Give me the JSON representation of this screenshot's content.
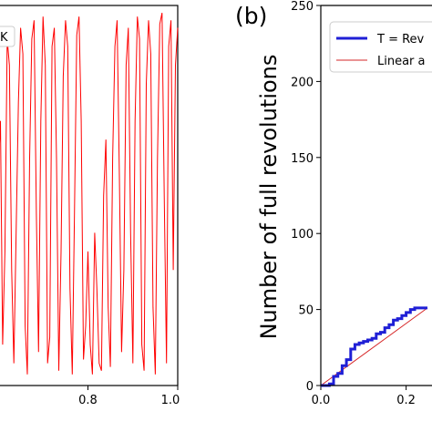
{
  "chart_data": [
    {
      "type": "line",
      "panel_label": "",
      "title": "",
      "xlabel": "",
      "ylabel": "",
      "xlim": [
        0.6,
        1.0
      ],
      "x_ticks": [
        "0.8",
        "1.0"
      ],
      "legend": {
        "placement": "top-left",
        "entries": [
          "K"
        ]
      },
      "series": [
        {
          "color": "#ff0000",
          "x": [
            0.6,
            0.605,
            0.61,
            0.615,
            0.62,
            0.625,
            0.63,
            0.635,
            0.64,
            0.645,
            0.65,
            0.655,
            0.66,
            0.665,
            0.67,
            0.675,
            0.68,
            0.685,
            0.69,
            0.695,
            0.7,
            0.705,
            0.71,
            0.715,
            0.72,
            0.725,
            0.73,
            0.735,
            0.74,
            0.745,
            0.75,
            0.755,
            0.76,
            0.765,
            0.77,
            0.775,
            0.78,
            0.785,
            0.79,
            0.795,
            0.8,
            0.805,
            0.81,
            0.815,
            0.82,
            0.825,
            0.83,
            0.835,
            0.84,
            0.845,
            0.85,
            0.855,
            0.86,
            0.865,
            0.87,
            0.875,
            0.88,
            0.885,
            0.89,
            0.895,
            0.9,
            0.905,
            0.91,
            0.915,
            0.92,
            0.925,
            0.93,
            0.935,
            0.94,
            0.945,
            0.95,
            0.955,
            0.96,
            0.965,
            0.97,
            0.975,
            0.98,
            0.985,
            0.99,
            0.995,
            1.0
          ],
          "y": [
            0.55,
            0.7,
            0.1,
            0.35,
            0.92,
            0.85,
            0.3,
            0.05,
            0.4,
            0.75,
            0.95,
            0.88,
            0.15,
            0.02,
            0.6,
            0.92,
            0.97,
            0.45,
            0.08,
            0.7,
            0.98,
            0.85,
            0.05,
            0.12,
            0.9,
            0.95,
            0.6,
            0.03,
            0.35,
            0.82,
            0.97,
            0.9,
            0.25,
            0.02,
            0.45,
            0.93,
            0.98,
            0.7,
            0.06,
            0.15,
            0.35,
            0.1,
            0.02,
            0.4,
            0.25,
            0.05,
            0.03,
            0.5,
            0.65,
            0.2,
            0.04,
            0.6,
            0.9,
            0.97,
            0.55,
            0.08,
            0.3,
            0.85,
            0.95,
            0.4,
            0.05,
            0.7,
            0.98,
            0.92,
            0.1,
            0.03,
            0.8,
            0.97,
            0.88,
            0.2,
            0.02,
            0.6,
            0.96,
            0.99,
            0.5,
            0.05,
            0.9,
            0.97,
            0.3,
            0.85,
            0.95
          ]
        }
      ]
    },
    {
      "type": "line",
      "panel_label": "(b)",
      "title": "",
      "xlabel": "",
      "ylabel": "Number of full revolutions",
      "xlim": [
        0.0,
        0.25
      ],
      "ylim": [
        0,
        250
      ],
      "x_ticks": [
        "0.0",
        "0.2"
      ],
      "y_ticks": [
        "0",
        "50",
        "100",
        "150",
        "200",
        "250"
      ],
      "legend": {
        "placement": "top-left",
        "entries": [
          "T = Rev",
          "Linear a"
        ]
      },
      "series": [
        {
          "name": "T = Rev",
          "color": "#1f1fd6",
          "x": [
            0.0,
            0.015,
            0.02,
            0.03,
            0.04,
            0.05,
            0.06,
            0.07,
            0.08,
            0.09,
            0.1,
            0.11,
            0.12,
            0.13,
            0.14,
            0.15,
            0.16,
            0.17,
            0.18,
            0.19,
            0.2,
            0.21,
            0.22,
            0.23,
            0.24,
            0.25
          ],
          "y": [
            0,
            0,
            1,
            6,
            8,
            13,
            17,
            24,
            27,
            28,
            29,
            30,
            31,
            34,
            35,
            38,
            40,
            43,
            44,
            46,
            48,
            50,
            51,
            51,
            51,
            51
          ]
        },
        {
          "name": "Linear a",
          "color": "#d62728",
          "x": [
            0.0,
            0.25
          ],
          "y": [
            0,
            51
          ]
        }
      ]
    }
  ]
}
